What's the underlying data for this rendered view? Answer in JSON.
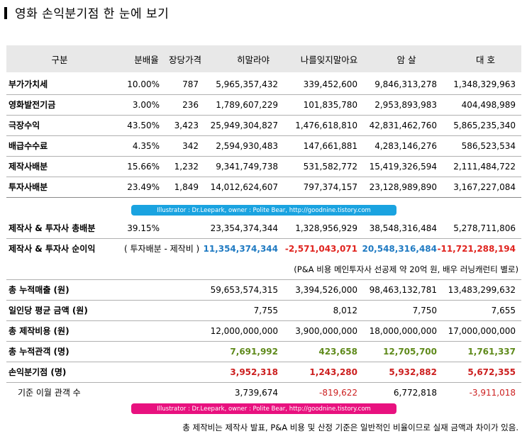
{
  "title": "영화 손익분기점 한 눈에 보기",
  "headers": {
    "category": "구분",
    "rate": "분배율",
    "price": "장당가격",
    "col1": "히말라야",
    "col2": "나를잊지말아요",
    "col3": "암 살",
    "col4": "대 호"
  },
  "rows_top": [
    {
      "label": "부가가치세",
      "rate": "10.00%",
      "price": "787",
      "v1": "5,965,357,432",
      "v2": "339,452,600",
      "v3": "9,846,313,278",
      "v4": "1,348,329,963"
    },
    {
      "label": "영화발전기금",
      "rate": "3.00%",
      "price": "236",
      "v1": "1,789,607,229",
      "v2": "101,835,780",
      "v3": "2,953,893,983",
      "v4": "404,498,989"
    },
    {
      "label": "극장수익",
      "rate": "43.50%",
      "price": "3,423",
      "v1": "25,949,304,827",
      "v2": "1,476,618,810",
      "v3": "42,831,462,760",
      "v4": "5,865,235,340"
    },
    {
      "label": "배급수수료",
      "rate": "4.35%",
      "price": "342",
      "v1": "2,594,930,483",
      "v2": "147,661,881",
      "v3": "4,283,146,276",
      "v4": "586,523,534"
    },
    {
      "label": "제작사배분",
      "rate": "15.66%",
      "price": "1,232",
      "v1": "9,341,749,738",
      "v2": "531,582,772",
      "v3": "15,419,326,594",
      "v4": "2,111,484,722"
    },
    {
      "label": "투자사배분",
      "rate": "23.49%",
      "price": "1,849",
      "v1": "14,012,624,607",
      "v2": "797,374,157",
      "v3": "23,128,989,890",
      "v4": "3,167,227,084"
    }
  ],
  "banner_text": "Illustrator : Dr.Leepark, owner : Polite Bear, http://goodnine.tistory.com",
  "total_share": {
    "label": "제작사 & 투자사 총배분",
    "rate": "39.15%",
    "v1": "23,354,374,344",
    "v2": "1,328,956,929",
    "v3": "38,548,316,484",
    "v4": "5,278,711,806"
  },
  "net_profit": {
    "label": "제작사 & 투자사 순이익",
    "formula": "( 투자배분 - 제작비 )",
    "v1": "11,354,374,344",
    "v2": "-2,571,043,071",
    "v3": "20,548,316,484",
    "v4": "-11,721,288,194"
  },
  "pa_note": "(P&A 비용 메인투자사 선공제 약 20억 원, 배우 러닝캐런티 별로)",
  "rows_bottom": [
    {
      "label": "총 누적매출 (원)",
      "v1": "59,653,574,315",
      "v2": "3,394,526,000",
      "v3": "98,463,132,781",
      "v4": "13,483,299,632"
    },
    {
      "label": "일인당 평균 금액 (원)",
      "v1": "7,755",
      "v2": "8,012",
      "v3": "7,750",
      "v4": "7,655"
    },
    {
      "label": "총 제작비용 (원)",
      "v1": "12,000,000,000",
      "v2": "3,900,000,000",
      "v3": "18,000,000,000",
      "v4": "17,000,000,000"
    },
    {
      "label": "총 누적관객 (명)",
      "v1": "7,691,992",
      "v2": "423,658",
      "v3": "12,705,700",
      "v4": "1,761,337"
    },
    {
      "label": "손익분기점 (명)",
      "v1": "3,952,318",
      "v2": "1,243,280",
      "v3": "5,932,882",
      "v4": "5,672,355"
    },
    {
      "label": "기준 이월 관객 수",
      "v1": "3,739,674",
      "v2": "-819,622",
      "v3": "6,772,818",
      "v4": "-3,911,018"
    }
  ],
  "footer_note": "총 제작비는 제작사 발표, P&A 비용 및 산정 기준은 일반적인 비율이므로 실재 금액과 차이가 있음.",
  "colors": {
    "banner_blue": "#1aa3e0",
    "banner_pink": "#e8117f",
    "header_bg": "#e8e8e8",
    "green": "#5f8a1b",
    "red": "#cc1f1f",
    "blue": "#1f7ac2"
  }
}
